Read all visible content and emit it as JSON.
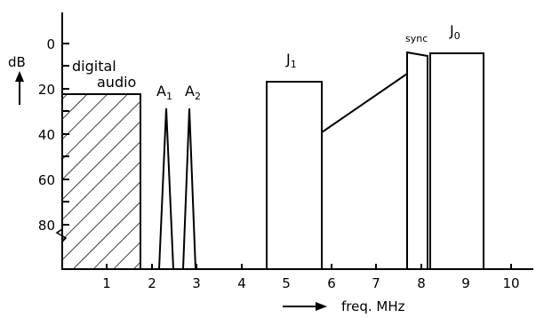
{
  "y_axis": {
    "unit_label": "dB",
    "ticks": [
      "0",
      "20",
      "40",
      "60",
      "80"
    ]
  },
  "x_axis": {
    "label": "freq. MHz",
    "ticks": [
      "1",
      "2",
      "3",
      "4",
      "5",
      "6",
      "7",
      "8",
      "9",
      "10"
    ]
  },
  "regions": {
    "digital_audio": {
      "label_line1": "digital",
      "label_line2": "audio",
      "f_end": 1.75,
      "level": 22,
      "hatched": true
    },
    "A1": {
      "main": "A",
      "sub": "1",
      "f_center": 2.3,
      "peak": 28
    },
    "A2": {
      "main": "A",
      "sub": "2",
      "f_center": 2.8,
      "peak": 28
    },
    "J1": {
      "main": "J",
      "sub": "1",
      "f_start": 4.5,
      "f_end": 5.75,
      "level": 17
    },
    "sync": {
      "label": "sync",
      "f_start": 7.65,
      "f_end": 8.1,
      "level_left": 4,
      "level_right": 6
    },
    "J0": {
      "main": "J",
      "sub": "0",
      "f_start": 8.1,
      "f_end": 9.3,
      "level": 4
    },
    "slope": {
      "from": [
        5.75,
        39
      ],
      "to": [
        7.65,
        13
      ]
    }
  }
}
